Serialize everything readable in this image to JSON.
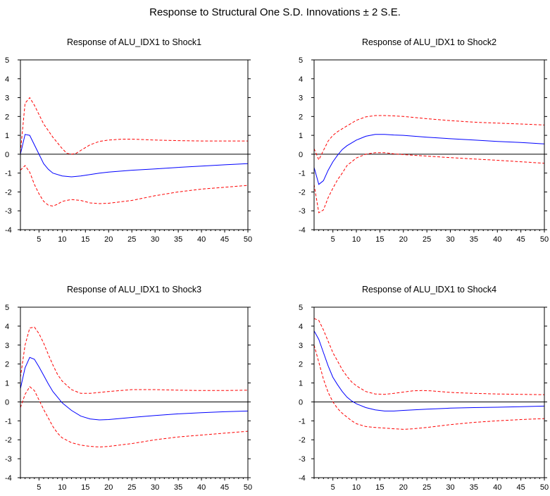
{
  "title": "Response to Structural One S.D. Innovations ± 2 S.E.",
  "colors": {
    "response": "#0000ff",
    "bands": "#ff0000",
    "zero": "#000000",
    "frame": "#000000"
  },
  "chart_data": [
    {
      "type": "line",
      "title": "Response of ALU_IDX1 to Shock1",
      "xlim": [
        1,
        50
      ],
      "ylim": [
        -4,
        5
      ],
      "xticks": [
        5,
        10,
        15,
        20,
        25,
        30,
        35,
        40,
        45,
        50
      ],
      "yticks": [
        -4,
        -3,
        -2,
        -1,
        0,
        1,
        2,
        3,
        4,
        5
      ],
      "zero_line": true,
      "series": [
        {
          "role": "response",
          "style": "solid",
          "color": "#0000ff",
          "x": [
            1,
            2,
            3,
            4,
            5,
            6,
            7,
            8,
            10,
            12,
            14,
            16,
            18,
            20,
            25,
            30,
            35,
            40,
            45,
            50
          ],
          "y": [
            0,
            1.05,
            1.0,
            0.5,
            0.0,
            -0.5,
            -0.8,
            -1.0,
            -1.15,
            -1.2,
            -1.15,
            -1.08,
            -1.0,
            -0.95,
            -0.85,
            -0.78,
            -0.7,
            -0.63,
            -0.56,
            -0.5
          ]
        },
        {
          "role": "upper",
          "style": "dashed",
          "color": "#ff0000",
          "x": [
            1,
            2,
            3,
            4,
            6,
            8,
            10,
            11,
            12,
            13,
            14,
            16,
            18,
            20,
            23,
            25,
            30,
            35,
            40,
            45,
            50
          ],
          "y": [
            0.1,
            2.7,
            3.0,
            2.6,
            1.6,
            0.9,
            0.3,
            0.05,
            0.0,
            0.05,
            0.2,
            0.5,
            0.68,
            0.75,
            0.8,
            0.8,
            0.75,
            0.72,
            0.7,
            0.7,
            0.7
          ]
        },
        {
          "role": "lower",
          "style": "dashed",
          "color": "#ff0000",
          "x": [
            1,
            2,
            3,
            4,
            5,
            6,
            7,
            8,
            9,
            10,
            12,
            14,
            16,
            18,
            20,
            25,
            30,
            35,
            40,
            45,
            50
          ],
          "y": [
            -0.85,
            -0.6,
            -0.95,
            -1.6,
            -2.1,
            -2.5,
            -2.7,
            -2.75,
            -2.65,
            -2.5,
            -2.4,
            -2.45,
            -2.58,
            -2.62,
            -2.6,
            -2.45,
            -2.2,
            -2.0,
            -1.85,
            -1.75,
            -1.65
          ]
        }
      ]
    },
    {
      "type": "line",
      "title": "Response of ALU_IDX1 to Shock2",
      "xlim": [
        1,
        50
      ],
      "ylim": [
        -4,
        5
      ],
      "xticks": [
        5,
        10,
        15,
        20,
        25,
        30,
        35,
        40,
        45,
        50
      ],
      "yticks": [
        -4,
        -3,
        -2,
        -1,
        0,
        1,
        2,
        3,
        4,
        5
      ],
      "zero_line": true,
      "series": [
        {
          "role": "response",
          "style": "solid",
          "color": "#0000ff",
          "x": [
            1,
            2,
            3,
            4,
            5,
            6,
            7,
            8,
            10,
            12,
            14,
            16,
            18,
            20,
            25,
            30,
            35,
            40,
            45,
            50
          ],
          "y": [
            -0.7,
            -1.6,
            -1.4,
            -0.85,
            -0.4,
            -0.05,
            0.25,
            0.45,
            0.75,
            0.95,
            1.05,
            1.05,
            1.02,
            1.0,
            0.9,
            0.82,
            0.75,
            0.68,
            0.62,
            0.55
          ]
        },
        {
          "role": "upper",
          "style": "dashed",
          "color": "#ff0000",
          "x": [
            1,
            2,
            3,
            4,
            5,
            6,
            8,
            10,
            12,
            14,
            16,
            18,
            20,
            25,
            30,
            35,
            40,
            45,
            50
          ],
          "y": [
            0.3,
            -0.3,
            0.2,
            0.7,
            1.0,
            1.2,
            1.5,
            1.8,
            1.98,
            2.05,
            2.05,
            2.03,
            2.0,
            1.88,
            1.78,
            1.7,
            1.65,
            1.6,
            1.55
          ]
        },
        {
          "role": "lower",
          "style": "dashed",
          "color": "#ff0000",
          "x": [
            1,
            2,
            3,
            4,
            5,
            6,
            7,
            8,
            10,
            12,
            14,
            16,
            18,
            20,
            25,
            30,
            35,
            40,
            45,
            50
          ],
          "y": [
            -1.6,
            -3.1,
            -2.95,
            -2.3,
            -1.8,
            -1.35,
            -1.0,
            -0.6,
            -0.2,
            0.0,
            0.08,
            0.08,
            0.02,
            -0.02,
            -0.1,
            -0.18,
            -0.25,
            -0.32,
            -0.4,
            -0.48
          ]
        }
      ]
    },
    {
      "type": "line",
      "title": "Response of ALU_IDX1 to Shock3",
      "xlim": [
        1,
        50
      ],
      "ylim": [
        -4,
        5
      ],
      "xticks": [
        5,
        10,
        15,
        20,
        25,
        30,
        35,
        40,
        45,
        50
      ],
      "yticks": [
        -4,
        -3,
        -2,
        -1,
        0,
        1,
        2,
        3,
        4,
        5
      ],
      "zero_line": true,
      "series": [
        {
          "role": "response",
          "style": "solid",
          "color": "#0000ff",
          "x": [
            1,
            2,
            3,
            4,
            5,
            6,
            7,
            8,
            9,
            10,
            12,
            14,
            16,
            18,
            20,
            25,
            30,
            35,
            40,
            45,
            50
          ],
          "y": [
            0.7,
            1.8,
            2.35,
            2.25,
            1.85,
            1.4,
            0.95,
            0.55,
            0.25,
            -0.05,
            -0.45,
            -0.75,
            -0.9,
            -0.95,
            -0.93,
            -0.82,
            -0.72,
            -0.63,
            -0.57,
            -0.52,
            -0.48
          ]
        },
        {
          "role": "upper",
          "style": "dashed",
          "color": "#ff0000",
          "x": [
            1,
            2,
            3,
            4,
            5,
            6,
            7,
            8,
            9,
            10,
            12,
            14,
            16,
            18,
            20,
            25,
            30,
            35,
            40,
            45,
            50
          ],
          "y": [
            1.3,
            3.0,
            3.9,
            3.95,
            3.6,
            3.1,
            2.5,
            1.95,
            1.45,
            1.1,
            0.65,
            0.45,
            0.45,
            0.5,
            0.55,
            0.65,
            0.65,
            0.62,
            0.6,
            0.6,
            0.62
          ]
        },
        {
          "role": "lower",
          "style": "dashed",
          "color": "#ff0000",
          "x": [
            1,
            2,
            3,
            4,
            5,
            6,
            7,
            8,
            9,
            10,
            12,
            14,
            16,
            18,
            20,
            25,
            30,
            35,
            40,
            45,
            50
          ],
          "y": [
            -0.3,
            0.4,
            0.8,
            0.6,
            0.1,
            -0.4,
            -0.85,
            -1.3,
            -1.65,
            -1.9,
            -2.15,
            -2.28,
            -2.35,
            -2.38,
            -2.35,
            -2.2,
            -2.0,
            -1.85,
            -1.75,
            -1.65,
            -1.55
          ]
        }
      ]
    },
    {
      "type": "line",
      "title": "Response of ALU_IDX1 to Shock4",
      "xlim": [
        1,
        50
      ],
      "ylim": [
        -4,
        5
      ],
      "xticks": [
        5,
        10,
        15,
        20,
        25,
        30,
        35,
        40,
        45,
        50
      ],
      "yticks": [
        -4,
        -3,
        -2,
        -1,
        0,
        1,
        2,
        3,
        4,
        5
      ],
      "zero_line": true,
      "series": [
        {
          "role": "response",
          "style": "solid",
          "color": "#0000ff",
          "x": [
            1,
            2,
            3,
            4,
            5,
            6,
            7,
            8,
            9,
            10,
            12,
            14,
            16,
            18,
            20,
            25,
            30,
            35,
            40,
            45,
            50
          ],
          "y": [
            3.75,
            3.3,
            2.6,
            1.9,
            1.3,
            0.9,
            0.55,
            0.25,
            0.05,
            -0.1,
            -0.3,
            -0.42,
            -0.48,
            -0.48,
            -0.45,
            -0.38,
            -0.33,
            -0.3,
            -0.28,
            -0.25,
            -0.22
          ]
        },
        {
          "role": "upper",
          "style": "dashed",
          "color": "#ff0000",
          "x": [
            1,
            2,
            3,
            4,
            5,
            6,
            7,
            8,
            9,
            10,
            12,
            14,
            16,
            18,
            20,
            22,
            24,
            26,
            30,
            35,
            40,
            45,
            50
          ],
          "y": [
            4.4,
            4.3,
            3.8,
            3.2,
            2.6,
            2.15,
            1.7,
            1.35,
            1.05,
            0.85,
            0.55,
            0.42,
            0.4,
            0.45,
            0.52,
            0.58,
            0.6,
            0.58,
            0.5,
            0.45,
            0.42,
            0.4,
            0.38
          ]
        },
        {
          "role": "lower",
          "style": "dashed",
          "color": "#ff0000",
          "x": [
            1,
            2,
            3,
            4,
            5,
            6,
            7,
            8,
            9,
            10,
            12,
            14,
            16,
            18,
            20,
            22,
            25,
            30,
            35,
            40,
            45,
            50
          ],
          "y": [
            3.0,
            2.1,
            1.2,
            0.5,
            0.0,
            -0.35,
            -0.6,
            -0.8,
            -1.0,
            -1.15,
            -1.3,
            -1.35,
            -1.38,
            -1.42,
            -1.45,
            -1.42,
            -1.35,
            -1.2,
            -1.08,
            -1.0,
            -0.93,
            -0.88
          ]
        }
      ]
    }
  ]
}
